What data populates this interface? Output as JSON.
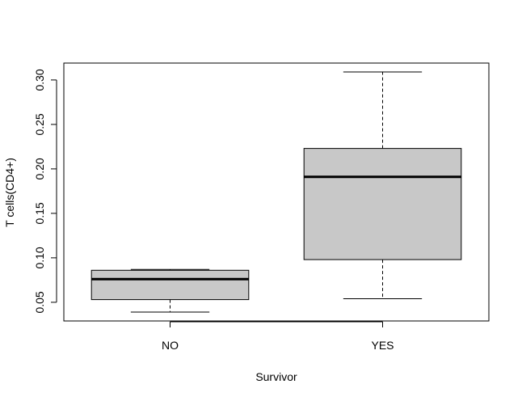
{
  "chart_data": {
    "type": "box",
    "title": "",
    "xlabel": "Survivor",
    "ylabel": "T cells(CD4+)",
    "categories": [
      "NO",
      "YES"
    ],
    "boxes": [
      {
        "category": "NO",
        "whisker_low": 0.039,
        "q1": 0.053,
        "median": 0.076,
        "q3": 0.086,
        "whisker_high": 0.087
      },
      {
        "category": "YES",
        "whisker_low": 0.054,
        "q1": 0.098,
        "median": 0.191,
        "q3": 0.223,
        "whisker_high": 0.309
      }
    ],
    "ylim": [
      0.029,
      0.319
    ],
    "yticks": [
      0.05,
      0.1,
      0.15,
      0.2,
      0.25,
      0.3
    ],
    "ytick_labels": [
      "0.05",
      "0.10",
      "0.15",
      "0.20",
      "0.25",
      "0.30"
    ],
    "grid": false,
    "box_fill": "#c8c8c8",
    "line_color": "#000000"
  }
}
